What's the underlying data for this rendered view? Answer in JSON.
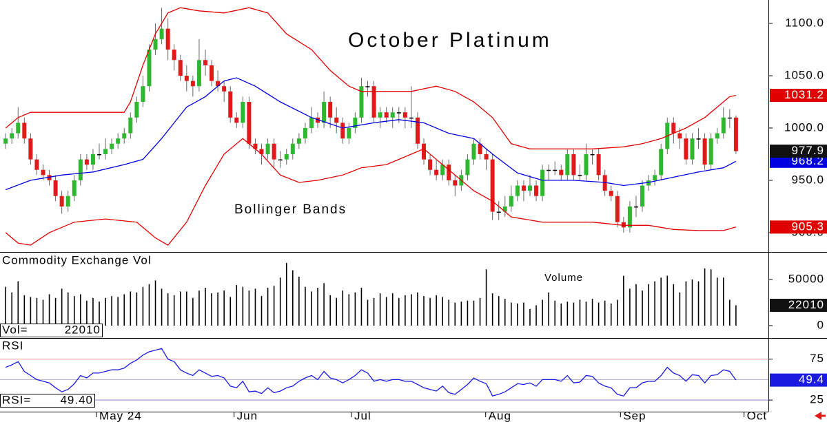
{
  "chart_data": [
    {
      "type": "candlestick",
      "title": "October Platinum",
      "annotation": "Bollinger Bands",
      "open": [
        985,
        990,
        995,
        1005,
        990,
        970,
        960,
        955,
        950,
        935,
        925,
        935,
        950,
        970,
        965,
        975,
        975,
        980,
        985,
        990,
        995,
        1010,
        1025,
        1040,
        1075,
        1085,
        1095,
        1075,
        1065,
        1050,
        1045,
        1040,
        1065,
        1060,
        1045,
        1040,
        1035,
        1010,
        1005,
        1025,
        985,
        980,
        975,
        985,
        970,
        970,
        975,
        985,
        990,
        1000,
        1010,
        1005,
        1025,
        1010,
        1005,
        990,
        1000,
        1010,
        1040,
        1040,
        1010,
        1015,
        1010,
        1015,
        1015,
        1010,
        1010,
        985,
        970,
        960,
        955,
        965,
        950,
        945,
        955,
        970,
        985,
        975,
        970,
        920,
        920,
        925,
        935,
        945,
        940,
        945,
        935,
        960,
        960,
        960,
        955,
        975,
        955,
        955,
        975,
        975,
        955,
        940,
        935,
        910,
        905,
        925,
        925,
        945,
        950,
        955,
        980,
        1005,
        995,
        990,
        970,
        990,
        990,
        965,
        990,
        995,
        1010,
        1010
      ],
      "high": [
        995,
        1000,
        1020,
        1010,
        995,
        975,
        965,
        960,
        955,
        940,
        940,
        955,
        975,
        975,
        980,
        985,
        990,
        990,
        995,
        1000,
        1015,
        1030,
        1050,
        1080,
        1100,
        1115,
        1105,
        1080,
        1070,
        1060,
        1050,
        1085,
        1075,
        1065,
        1055,
        1045,
        1040,
        1015,
        1030,
        1030,
        990,
        985,
        990,
        990,
        978,
        980,
        990,
        995,
        1005,
        1020,
        1015,
        1035,
        1030,
        1020,
        1010,
        1005,
        1015,
        1048,
        1045,
        1045,
        1020,
        1020,
        1020,
        1020,
        1020,
        1040,
        1015,
        990,
        975,
        970,
        970,
        970,
        955,
        960,
        975,
        990,
        990,
        980,
        975,
        930,
        935,
        945,
        950,
        950,
        955,
        950,
        965,
        965,
        968,
        965,
        980,
        980,
        965,
        985,
        980,
        980,
        960,
        945,
        940,
        915,
        930,
        935,
        950,
        955,
        960,
        985,
        1010,
        1010,
        1000,
        995,
        995,
        1000,
        995,
        995,
        1000,
        1020,
        1018,
        1012
      ],
      "low": [
        980,
        985,
        990,
        985,
        965,
        955,
        950,
        945,
        930,
        918,
        920,
        930,
        945,
        960,
        960,
        970,
        970,
        975,
        980,
        985,
        990,
        1005,
        1020,
        1035,
        1070,
        1080,
        1065,
        1055,
        1045,
        1035,
        1030,
        1035,
        1050,
        1040,
        1035,
        1025,
        1005,
        1000,
        1000,
        980,
        975,
        965,
        970,
        962,
        962,
        965,
        970,
        980,
        985,
        995,
        1000,
        1000,
        1000,
        995,
        985,
        985,
        995,
        1005,
        1030,
        1005,
        1000,
        1005,
        1000,
        1005,
        1000,
        1000,
        980,
        965,
        955,
        950,
        950,
        945,
        935,
        940,
        950,
        965,
        970,
        960,
        912,
        912,
        915,
        920,
        930,
        930,
        935,
        930,
        930,
        950,
        955,
        950,
        950,
        950,
        950,
        950,
        965,
        950,
        935,
        930,
        905,
        900,
        900,
        915,
        920,
        940,
        945,
        950,
        975,
        985,
        980,
        965,
        965,
        980,
        960,
        960,
        985,
        990,
        1000,
        975
      ],
      "close": [
        990,
        995,
        1005,
        990,
        970,
        960,
        955,
        950,
        935,
        925,
        935,
        950,
        970,
        965,
        975,
        975,
        980,
        985,
        990,
        995,
        1010,
        1025,
        1040,
        1075,
        1085,
        1095,
        1075,
        1065,
        1050,
        1045,
        1040,
        1065,
        1060,
        1045,
        1040,
        1035,
        1010,
        1005,
        1025,
        985,
        980,
        975,
        985,
        970,
        970,
        975,
        985,
        990,
        1000,
        1010,
        1005,
        1025,
        1010,
        1005,
        990,
        1000,
        1010,
        1040,
        1040,
        1010,
        1015,
        1010,
        1015,
        1015,
        1010,
        1010,
        985,
        970,
        960,
        955,
        965,
        950,
        945,
        955,
        970,
        985,
        975,
        970,
        920,
        920,
        925,
        935,
        945,
        940,
        945,
        935,
        960,
        960,
        960,
        955,
        975,
        955,
        955,
        975,
        975,
        955,
        940,
        935,
        910,
        905,
        925,
        925,
        945,
        950,
        955,
        980,
        1005,
        995,
        990,
        970,
        990,
        990,
        965,
        990,
        995,
        1010,
        1010,
        977.9
      ],
      "up_color": "#2fb82f",
      "down_color": "#e01a1a",
      "bands": [
        {
          "color": "#e00000",
          "x": [
            0,
            2,
            4,
            19,
            20,
            22,
            24,
            26,
            28,
            31,
            35,
            39,
            42,
            45,
            49,
            52,
            55,
            57,
            61,
            65,
            69,
            72,
            75,
            78,
            81,
            84,
            89,
            94,
            99,
            102,
            105,
            109,
            112,
            114,
            116,
            117
          ],
          "values": [
            1000,
            1010,
            1015,
            1015,
            1025,
            1060,
            1090,
            1110,
            1115,
            1112,
            1110,
            1115,
            1110,
            1090,
            1075,
            1055,
            1040,
            1035,
            1035,
            1035,
            1040,
            1035,
            1025,
            1010,
            985,
            980,
            980,
            980,
            982,
            985,
            990,
            1000,
            1010,
            1020,
            1030,
            1031.2
          ]
        },
        {
          "color": "#0000e0",
          "x": [
            0,
            4,
            9,
            14,
            19,
            22,
            25,
            29,
            32,
            35,
            37,
            40,
            44,
            49,
            54,
            59,
            63,
            67,
            71,
            75,
            78,
            82,
            86,
            91,
            96,
            99,
            103,
            107,
            111,
            115,
            117
          ],
          "values": [
            941,
            950,
            955,
            958,
            965,
            970,
            990,
            1020,
            1030,
            1045,
            1048,
            1040,
            1025,
            1010,
            1000,
            1005,
            1008,
            1005,
            995,
            990,
            975,
            957,
            950,
            950,
            948,
            945,
            948,
            953,
            958,
            962,
            968.2
          ]
        },
        {
          "color": "#e00000",
          "x": [
            0,
            2,
            4,
            7,
            11,
            16,
            21,
            24,
            26,
            29,
            32,
            35,
            38,
            41,
            44,
            47,
            50,
            54,
            57,
            61,
            65,
            67,
            71,
            75,
            78,
            81,
            86,
            94,
            99,
            103,
            107,
            111,
            115,
            117
          ],
          "values": [
            900,
            890,
            888,
            900,
            910,
            913,
            910,
            895,
            888,
            910,
            945,
            975,
            990,
            975,
            955,
            948,
            950,
            955,
            962,
            965,
            975,
            980,
            960,
            940,
            930,
            915,
            910,
            910,
            907,
            907,
            903,
            902,
            902,
            905.3
          ]
        }
      ],
      "xlim": [
        -0.9,
        122.2
      ],
      "ylim": [
        881.5,
        1122.4
      ],
      "yticks": [
        {
          "value": 1100,
          "label": "1100.0"
        },
        {
          "value": 1050,
          "label": "1050.0"
        },
        {
          "value": 1000,
          "label": "1000.0"
        },
        {
          "value": 950,
          "label": "950.0"
        },
        {
          "value": 900,
          "label": "900.0"
        }
      ],
      "xticks": [
        {
          "value": 14.56,
          "label": "May 24"
        },
        {
          "value": 36.6,
          "label": "Jun"
        },
        {
          "value": 55.4,
          "label": "Jul"
        },
        {
          "value": 76.9,
          "label": "Aug"
        },
        {
          "value": 98.5,
          "label": "Sep"
        },
        {
          "value": 118.3,
          "label": "Oct"
        }
      ]
    },
    {
      "type": "bar",
      "title": "Commodity Exchange Vol",
      "annotation": "Volume",
      "readout": "Vol=",
      "color": "#000000",
      "values": [
        42000,
        36000,
        48000,
        33000,
        31000,
        30000,
        28000,
        34000,
        30000,
        40000,
        36000,
        32000,
        34000,
        27000,
        30000,
        26000,
        30000,
        32000,
        31000,
        34000,
        37000,
        36000,
        42000,
        45000,
        49000,
        40000,
        35000,
        33000,
        37000,
        37000,
        30000,
        38000,
        41000,
        35000,
        36000,
        38000,
        31000,
        44000,
        42000,
        38000,
        40000,
        32000,
        41000,
        43000,
        52000,
        68000,
        60000,
        53000,
        42000,
        37000,
        41000,
        46000,
        33000,
        30000,
        38000,
        34000,
        36000,
        41000,
        28000,
        30000,
        35000,
        31000,
        35000,
        30000,
        33000,
        34000,
        36000,
        32000,
        30000,
        33000,
        31000,
        28000,
        25000,
        26000,
        27000,
        27000,
        30000,
        61000,
        35000,
        32000,
        29000,
        25000,
        24000,
        25000,
        18000,
        22000,
        28000,
        36000,
        27000,
        24000,
        26000,
        25000,
        28000,
        26000,
        29000,
        25000,
        27000,
        24000,
        28000,
        54000,
        40000,
        45000,
        38000,
        45000,
        48000,
        52000,
        54000,
        45000,
        36000,
        48000,
        50000,
        48000,
        62000,
        61000,
        52000,
        52000,
        28000,
        22010
      ],
      "ylim": [
        -12700,
        79100
      ],
      "yticks": [
        50000,
        0
      ]
    },
    {
      "type": "line",
      "title": "RSI",
      "readout": "RSI=",
      "readout_value_label": "49.40",
      "color": "#1a1ae0",
      "values": [
        65,
        68,
        72,
        60,
        55,
        50,
        48,
        46,
        40,
        35,
        38,
        45,
        55,
        52,
        58,
        58,
        60,
        62,
        62,
        64,
        70,
        74,
        80,
        84,
        86,
        88,
        75,
        72,
        62,
        58,
        55,
        62,
        58,
        54,
        55,
        52,
        42,
        40,
        48,
        35,
        36,
        33,
        40,
        34,
        36,
        40,
        42,
        48,
        52,
        55,
        50,
        60,
        52,
        50,
        46,
        50,
        55,
        62,
        58,
        48,
        50,
        48,
        50,
        50,
        48,
        48,
        44,
        40,
        38,
        36,
        42,
        34,
        32,
        38,
        44,
        52,
        48,
        45,
        30,
        32,
        35,
        40,
        45,
        44,
        46,
        42,
        50,
        50,
        50,
        48,
        55,
        46,
        47,
        55,
        54,
        46,
        42,
        40,
        32,
        30,
        40,
        40,
        46,
        48,
        48,
        55,
        65,
        58,
        55,
        48,
        56,
        55,
        46,
        55,
        56,
        62,
        60,
        49.4
      ],
      "ylim": [
        10.8,
        100
      ],
      "yticks": [
        75,
        25
      ],
      "hlines": [
        75,
        50,
        25
      ]
    }
  ]
}
